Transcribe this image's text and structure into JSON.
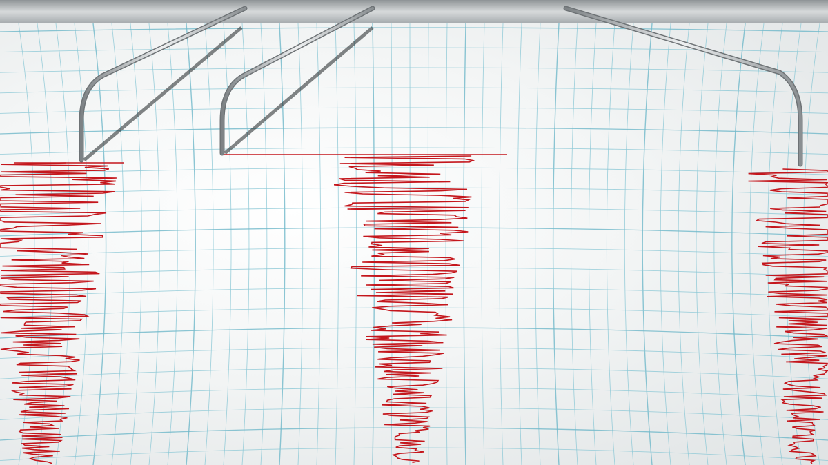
{
  "colors": {
    "paper": "#f4f6f6",
    "grid": "#8cc8d6",
    "grid_major": "#6fb8c9",
    "trace": "#c4161c",
    "needle": "#b9bdbf",
    "rail": "#9ea3a6"
  },
  "scene": {
    "needle_count": 3,
    "trace_count": 3
  }
}
